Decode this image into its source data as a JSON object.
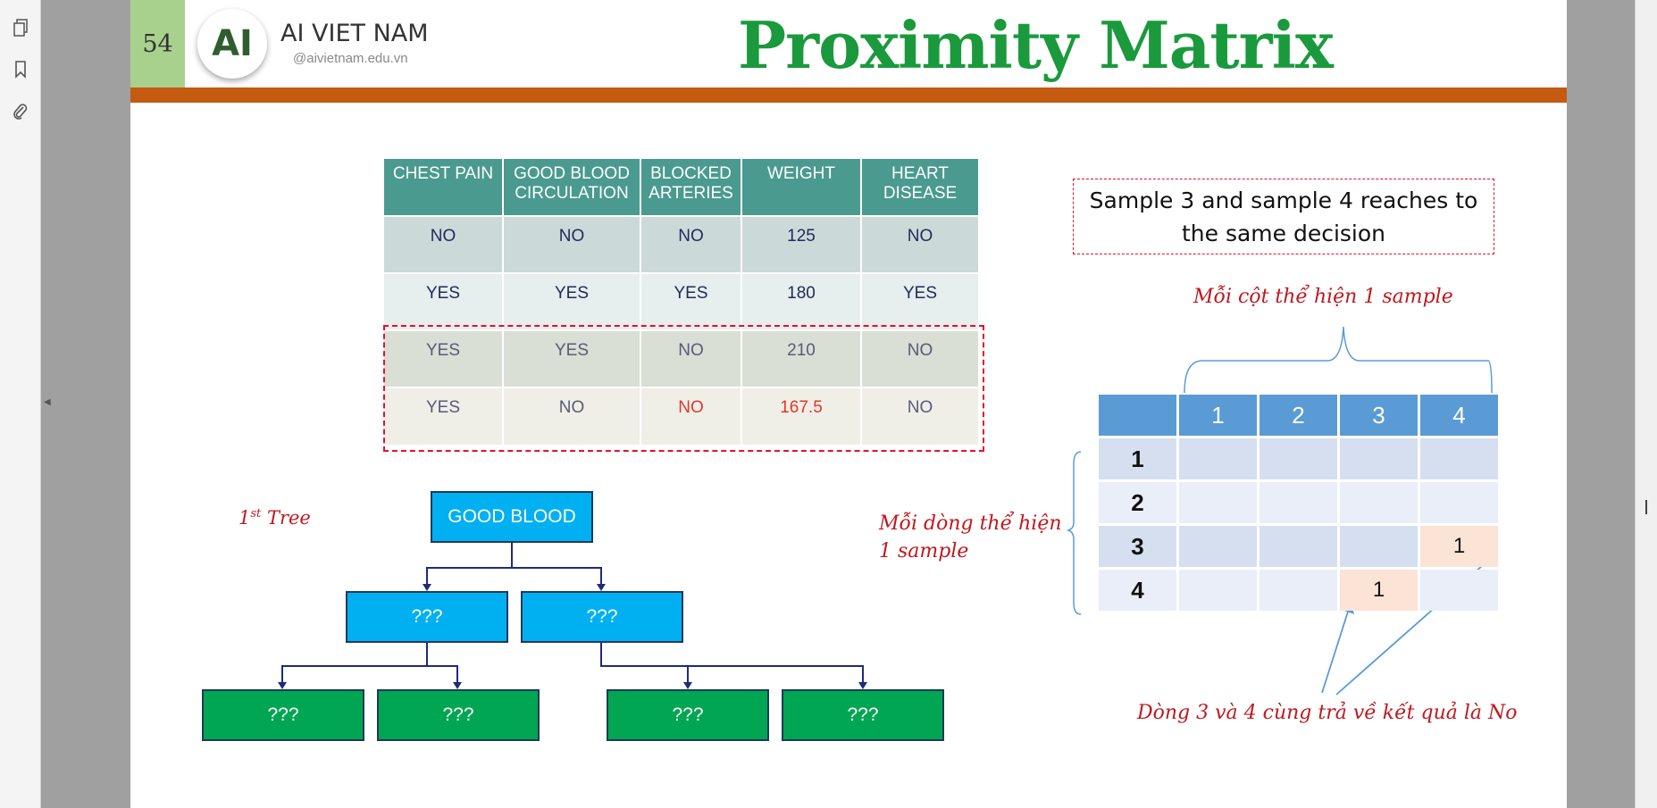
{
  "viewer": {
    "sidebar_icons": [
      "pages-icon",
      "bookmark-icon",
      "attachment-icon"
    ]
  },
  "slide": {
    "page_number": "54",
    "brand": {
      "logo_text": "AI",
      "name": "AI VIET NAM",
      "site": "@aivietnam.edu.vn"
    },
    "title": "Proximity Matrix",
    "colors": {
      "title": "#1a9a3c",
      "bar": "#c55a11",
      "table_header": "#4a9a8f",
      "note_red": "#c0181f"
    }
  },
  "table": {
    "headers": [
      "CHEST PAIN",
      "GOOD BLOOD CIRCULATION",
      "BLOCKED ARTERIES",
      "WEIGHT",
      "HEART DISEASE"
    ],
    "rows": [
      [
        "NO",
        "NO",
        "NO",
        "125",
        "NO"
      ],
      [
        "YES",
        "YES",
        "YES",
        "180",
        "YES"
      ],
      [
        "YES",
        "YES",
        "NO",
        "210",
        "NO"
      ],
      [
        "YES",
        "NO",
        "NO",
        "167.5",
        "NO"
      ]
    ]
  },
  "note": "Sample 3 and sample 4 reaches to the same decision",
  "annotations": {
    "column_note": "Mỗi cột  thể hiện 1 sample",
    "row_note_line1": "Mỗi dòng thể hiện",
    "row_note_line2": "1 sample",
    "bottom_note": "Dòng 3 và 4 cùng trả về kết quả là No",
    "tree_label": "1",
    "tree_label_sup": "st",
    "tree_label_word": " Tree"
  },
  "tree": {
    "root": "GOOD BLOOD",
    "level2": [
      "???",
      "???"
    ],
    "level3": [
      "???",
      "???",
      "???",
      "???"
    ]
  },
  "matrix": {
    "col_headers": [
      "",
      "1",
      "2",
      "3",
      "4"
    ],
    "rows": [
      {
        "label": "1",
        "cells": [
          "",
          "",
          "",
          ""
        ]
      },
      {
        "label": "2",
        "cells": [
          "",
          "",
          "",
          ""
        ]
      },
      {
        "label": "3",
        "cells": [
          "",
          "",
          "",
          "1"
        ]
      },
      {
        "label": "4",
        "cells": [
          "",
          "",
          "1",
          ""
        ]
      }
    ]
  }
}
